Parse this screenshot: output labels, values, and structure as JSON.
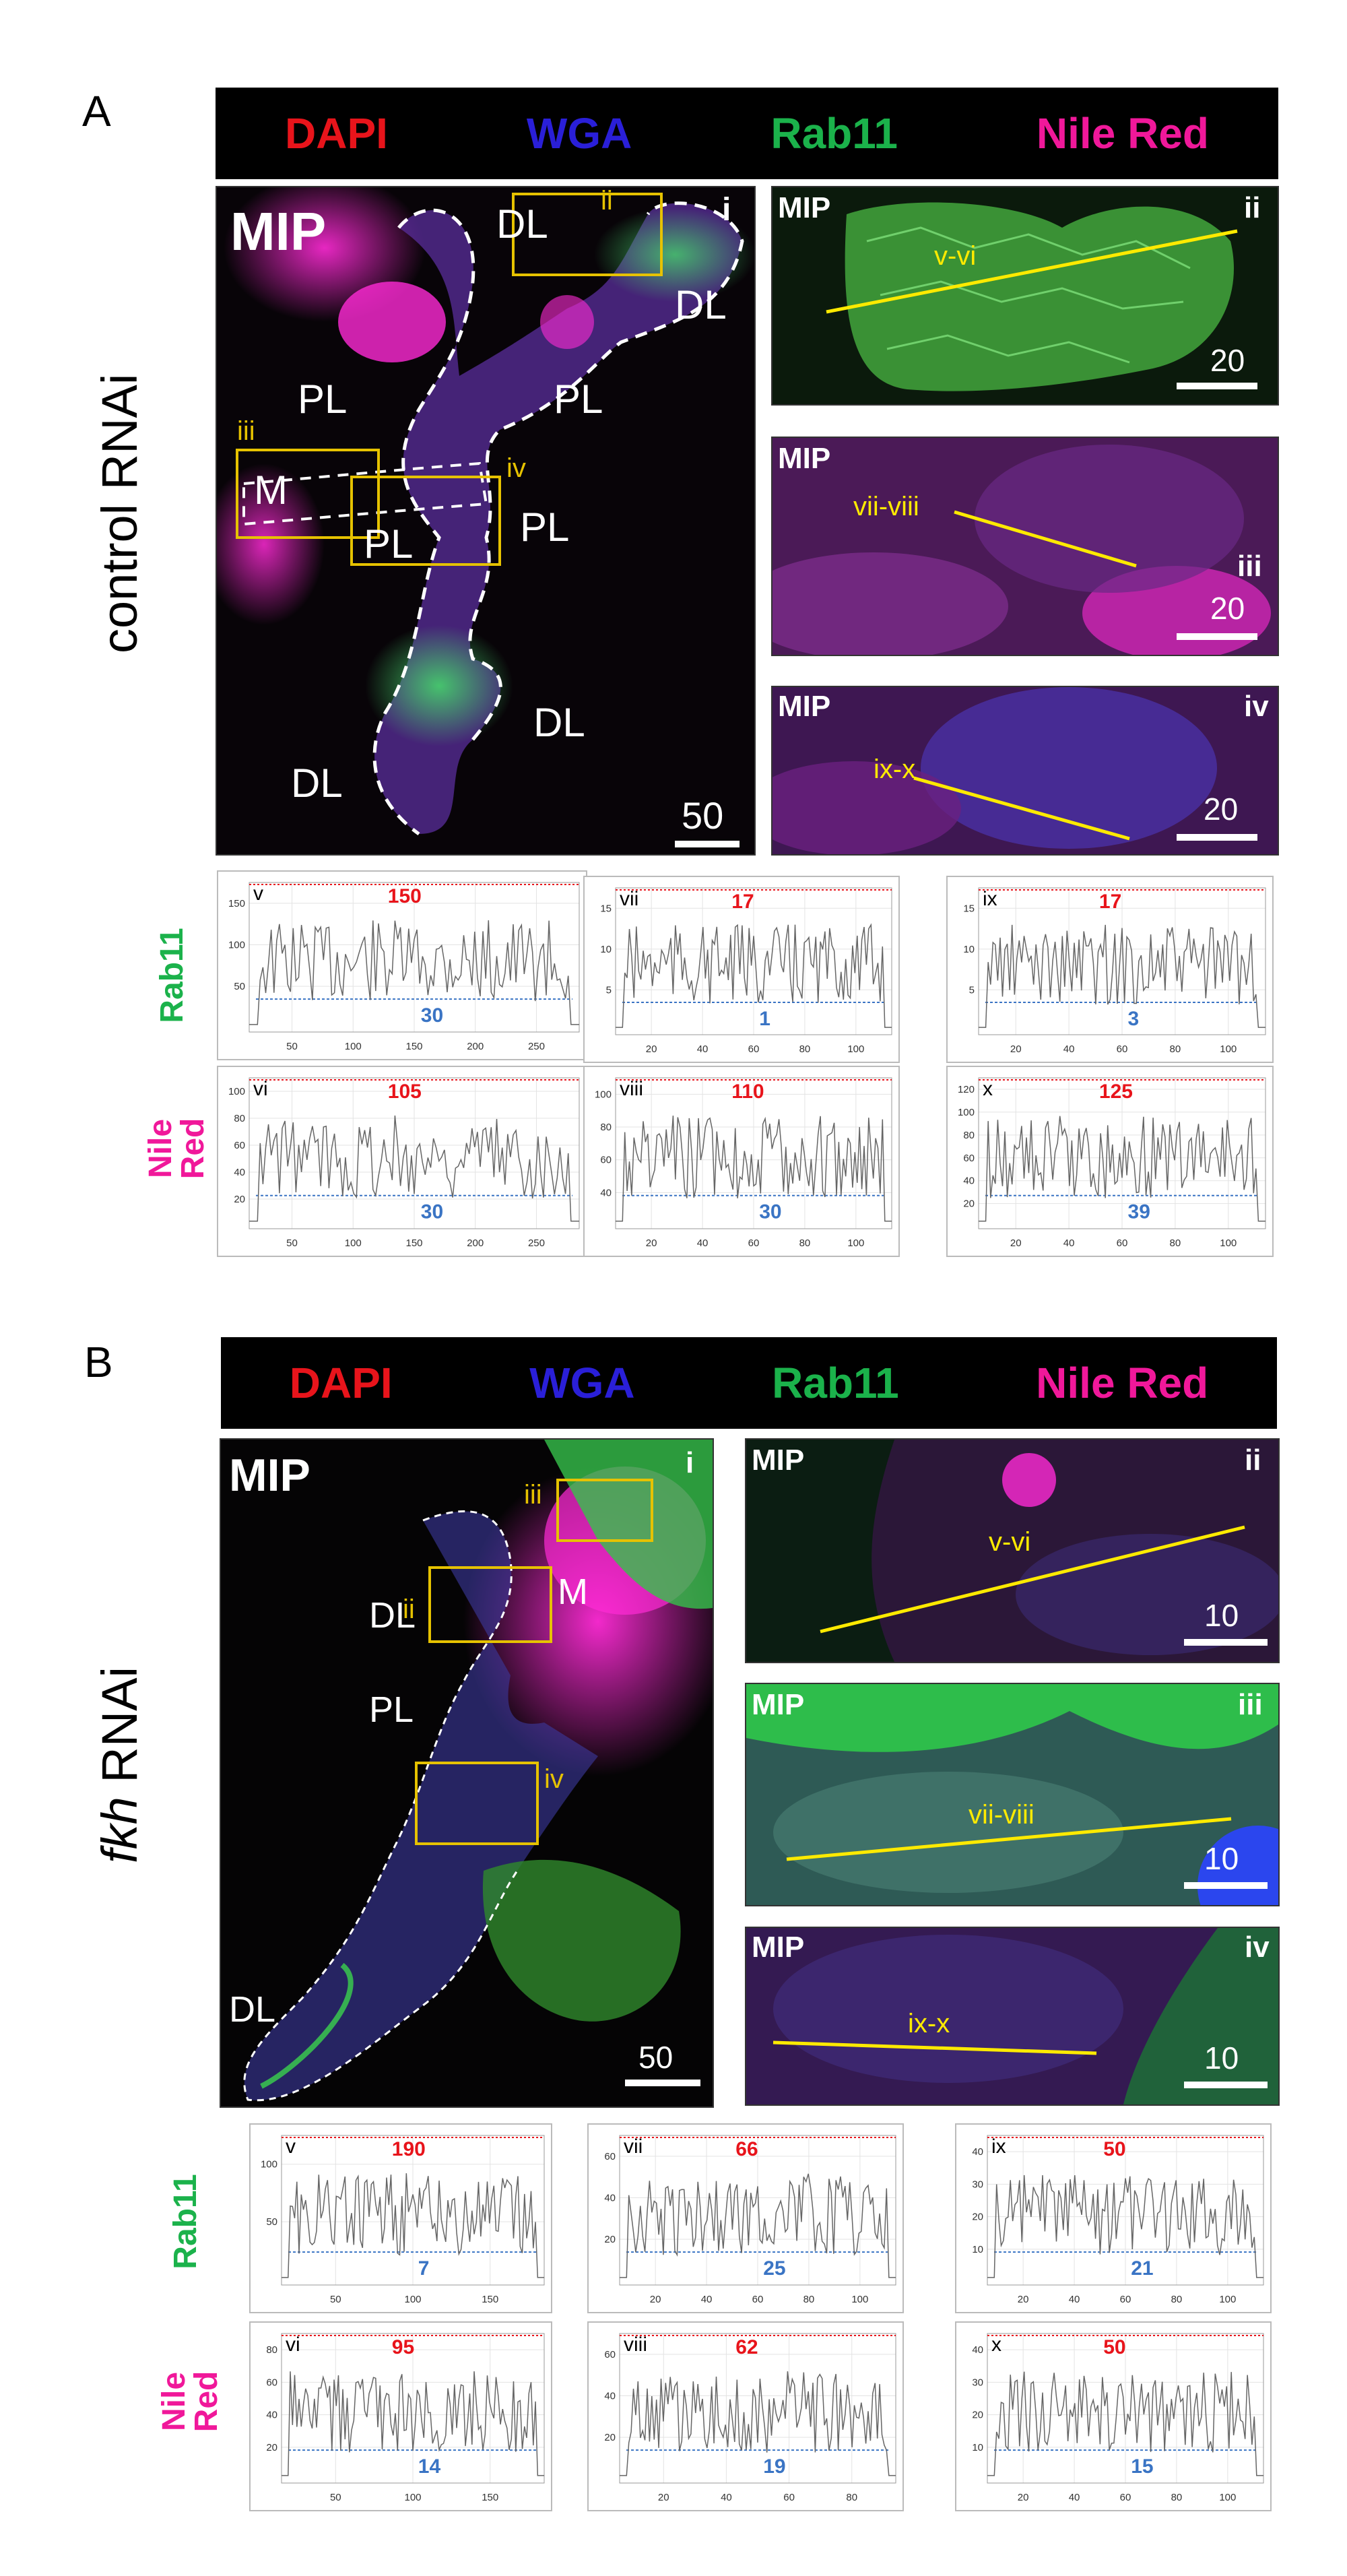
{
  "colors": {
    "dapi": "#e8141b",
    "wga": "#2a1fd8",
    "rab11": "#1bb24b",
    "nile": "#f0189a",
    "line": "#ffea00",
    "red_value": "#e8141b",
    "blue_value": "#3a74c4"
  },
  "panelA": {
    "letter": "A",
    "channels": [
      "DAPI",
      "WGA",
      "Rab11",
      "Nile Red"
    ],
    "condition": "control RNAi",
    "main": {
      "mip": "MIP",
      "roman": "i",
      "scale": "50",
      "regions": [
        "DL",
        "DL",
        "PL",
        "PL",
        "M",
        "PL",
        "PL",
        "DL",
        "DL"
      ],
      "box_labels": [
        "ii",
        "iii",
        "iv"
      ]
    },
    "insets": [
      {
        "mip": "MIP",
        "roman": "ii",
        "line": "v-vi",
        "scale": "20"
      },
      {
        "mip": "MIP",
        "roman": "iii",
        "line": "vii-viii",
        "scale": "20"
      },
      {
        "mip": "MIP",
        "roman": "iv",
        "line": "ix-x",
        "scale": "20"
      }
    ],
    "channel_labels": {
      "rab11": "Rab11",
      "nile1": "Nile",
      "nile2": "Red"
    },
    "plots": [
      {
        "roman": "v",
        "max": "150",
        "min": "30",
        "yticks": [
          "150",
          "100",
          "50"
        ],
        "xticks": [
          "50",
          "100",
          "150",
          "200",
          "250"
        ]
      },
      {
        "roman": "vii",
        "max": "17",
        "min": "1",
        "yticks": [
          "15",
          "10",
          "5"
        ],
        "xticks": [
          "20",
          "40",
          "60",
          "80",
          "100"
        ]
      },
      {
        "roman": "ix",
        "max": "17",
        "min": "3",
        "yticks": [
          "15",
          "10",
          "5"
        ],
        "xticks": [
          "20",
          "40",
          "60",
          "80",
          "100"
        ]
      },
      {
        "roman": "vi",
        "max": "105",
        "min": "30",
        "yticks": [
          "100",
          "80",
          "60",
          "40",
          "20"
        ],
        "xticks": [
          "50",
          "100",
          "150",
          "200",
          "250"
        ]
      },
      {
        "roman": "viii",
        "max": "110",
        "min": "30",
        "yticks": [
          "100",
          "80",
          "60",
          "40"
        ],
        "xticks": [
          "20",
          "40",
          "60",
          "80",
          "100"
        ]
      },
      {
        "roman": "x",
        "max": "125",
        "min": "39",
        "yticks": [
          "120",
          "100",
          "80",
          "60",
          "40",
          "20"
        ],
        "xticks": [
          "20",
          "40",
          "60",
          "80",
          "100"
        ]
      }
    ]
  },
  "panelB": {
    "letter": "B",
    "channels": [
      "DAPI",
      "WGA",
      "Rab11",
      "Nile Red"
    ],
    "condition_italic": "fkh",
    "condition_rest": " RNAi",
    "main": {
      "mip": "MIP",
      "roman": "i",
      "scale": "50",
      "regions": [
        "DL",
        "PL",
        "DL",
        "M"
      ],
      "box_labels": [
        "ii",
        "iii",
        "iv"
      ]
    },
    "insets": [
      {
        "mip": "MIP",
        "roman": "ii",
        "line": "v-vi",
        "scale": "10"
      },
      {
        "mip": "MIP",
        "roman": "iii",
        "line": "vii-viii",
        "scale": "10"
      },
      {
        "mip": "MIP",
        "roman": "iv",
        "line": "ix-x",
        "scale": "10"
      }
    ],
    "channel_labels": {
      "rab11": "Rab11",
      "nile1": "Nile",
      "nile2": "Red"
    },
    "plots": [
      {
        "roman": "v",
        "max": "190",
        "min": "7",
        "yticks": [
          "100",
          "50"
        ],
        "xticks": [
          "50",
          "100",
          "150"
        ]
      },
      {
        "roman": "vii",
        "max": "66",
        "min": "25",
        "yticks": [
          "60",
          "40",
          "20"
        ],
        "xticks": [
          "20",
          "40",
          "60",
          "80",
          "100"
        ]
      },
      {
        "roman": "ix",
        "max": "50",
        "min": "21",
        "yticks": [
          "40",
          "30",
          "20",
          "10"
        ],
        "xticks": [
          "20",
          "40",
          "60",
          "80",
          "100"
        ]
      },
      {
        "roman": "vi",
        "max": "95",
        "min": "14",
        "yticks": [
          "80",
          "60",
          "40",
          "20"
        ],
        "xticks": [
          "50",
          "100",
          "150"
        ]
      },
      {
        "roman": "viii",
        "max": "62",
        "min": "19",
        "yticks": [
          "60",
          "40",
          "20"
        ],
        "xticks": [
          "20",
          "40",
          "60",
          "80"
        ]
      },
      {
        "roman": "x",
        "max": "50",
        "min": "15",
        "yticks": [
          "40",
          "30",
          "20",
          "10"
        ],
        "xticks": [
          "20",
          "40",
          "60",
          "80",
          "100"
        ]
      }
    ]
  }
}
